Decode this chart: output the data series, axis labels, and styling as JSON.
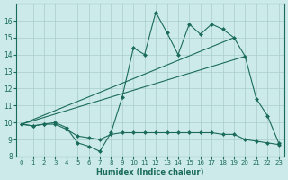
{
  "bg_color": "#cceaea",
  "grid_color": "#aacccc",
  "line_color": "#1a6b5a",
  "xlabel": "Humidex (Indice chaleur)",
  "ylim": [
    8,
    17
  ],
  "xlim": [
    -0.5,
    23.5
  ],
  "yticks": [
    8,
    9,
    10,
    11,
    12,
    13,
    14,
    15,
    16
  ],
  "xticks": [
    0,
    1,
    2,
    3,
    4,
    5,
    6,
    7,
    8,
    9,
    10,
    11,
    12,
    13,
    14,
    15,
    16,
    17,
    18,
    19,
    20,
    21,
    22,
    23
  ],
  "line1_x": [
    0,
    1,
    2,
    3,
    4,
    5,
    6,
    7,
    8,
    9,
    10,
    11,
    12,
    13,
    14,
    15,
    16,
    17,
    18,
    19,
    20,
    21,
    22,
    23
  ],
  "line1_y": [
    9.9,
    9.8,
    9.9,
    10.0,
    9.7,
    8.8,
    8.6,
    8.3,
    9.4,
    11.5,
    14.4,
    14.0,
    16.5,
    15.3,
    14.0,
    15.8,
    15.2,
    15.8,
    15.5,
    15.0,
    13.9,
    11.4,
    10.4,
    8.8
  ],
  "line2_x": [
    0,
    19
  ],
  "line2_y": [
    9.9,
    15.0
  ],
  "line3_x": [
    0,
    20
  ],
  "line3_y": [
    9.9,
    13.9
  ],
  "line4_x": [
    0,
    1,
    2,
    3,
    4,
    5,
    6,
    7,
    8,
    9,
    10,
    11,
    12,
    13,
    14,
    15,
    16,
    17,
    18,
    19,
    20,
    21,
    22,
    23
  ],
  "line4_y": [
    9.9,
    9.8,
    9.9,
    9.9,
    9.6,
    9.2,
    9.1,
    9.0,
    9.3,
    9.4,
    9.4,
    9.4,
    9.4,
    9.4,
    9.4,
    9.4,
    9.4,
    9.4,
    9.3,
    9.3,
    9.0,
    8.9,
    8.8,
    8.7
  ]
}
